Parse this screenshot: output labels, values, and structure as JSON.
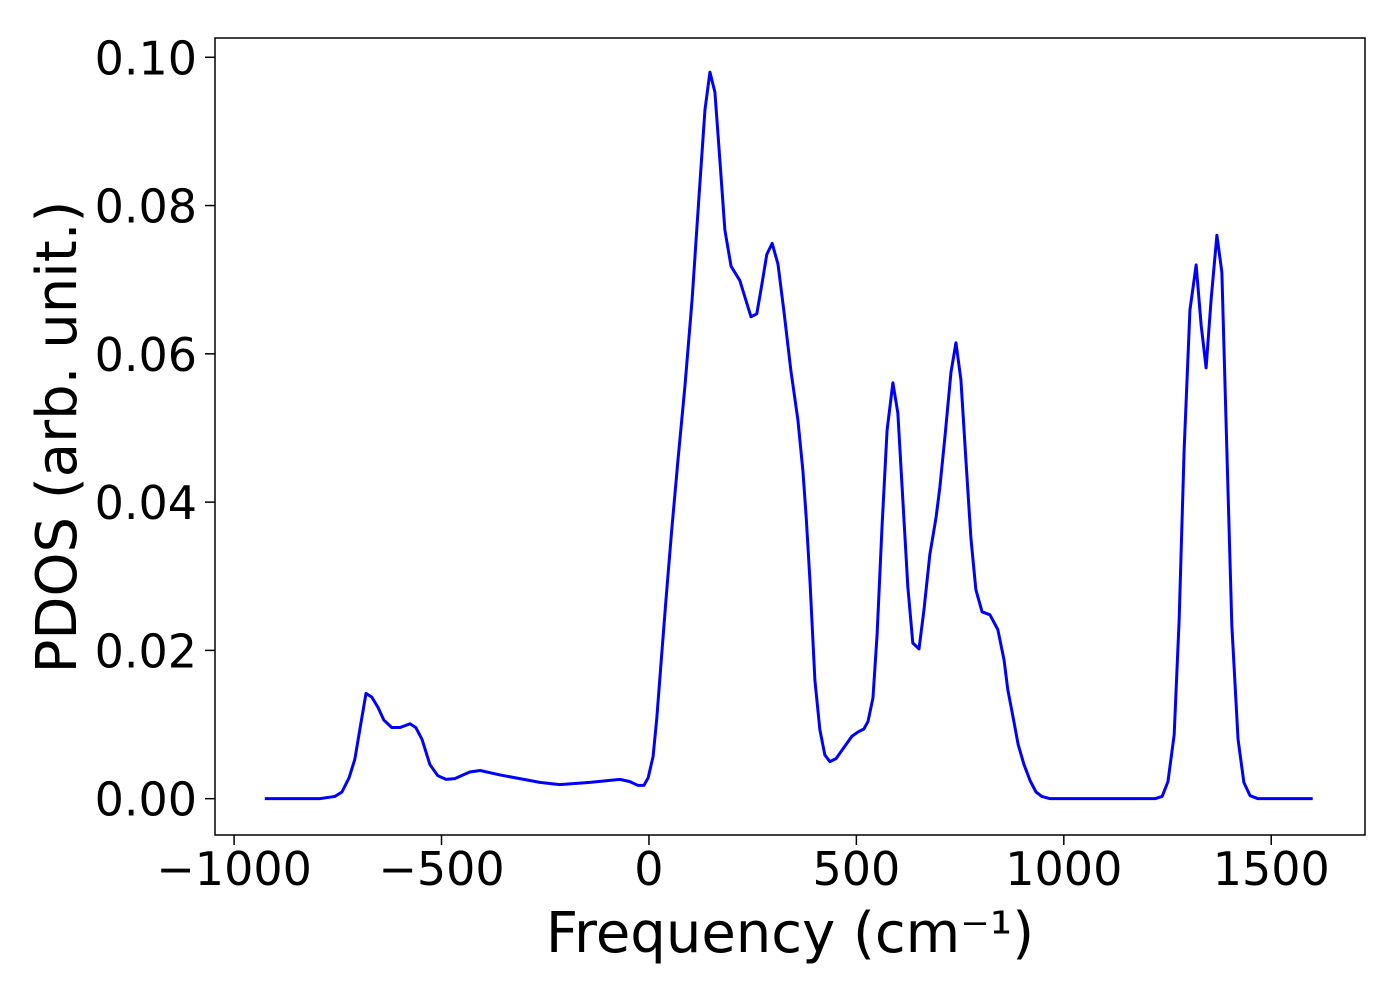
{
  "chart_data": {
    "type": "line",
    "xlabel": "Frequency (cm⁻¹)",
    "ylabel": "PDOS (arb. unit.)",
    "xlim": [
      -1046,
      1726
    ],
    "ylim": [
      -0.0049,
      0.1026
    ],
    "xticks": [
      {
        "value": -1000,
        "label": "−1000"
      },
      {
        "value": -500,
        "label": "−500"
      },
      0,
      500,
      1000,
      1500
    ],
    "yticks": [
      {
        "value": 0,
        "label": "0.00"
      },
      {
        "value": 0.02,
        "label": "0.02"
      },
      {
        "value": 0.04,
        "label": "0.04"
      },
      {
        "value": 0.06,
        "label": "0.06"
      },
      {
        "value": 0.08,
        "label": "0.08"
      },
      {
        "value": 0.1,
        "label": "0.10"
      }
    ],
    "series": [
      {
        "color": "#0000ff",
        "x": [
          -926,
          -793,
          -757,
          -740,
          -723,
          -709,
          -697,
          -682,
          -668,
          -653,
          -639,
          -620,
          -600,
          -576,
          -562,
          -547,
          -528,
          -509,
          -489,
          -468,
          -432,
          -407,
          -359,
          -263,
          -215,
          -142,
          -70,
          -46,
          -27,
          -12,
          -2,
          10,
          19,
          29,
          41,
          55,
          70,
          87,
          104,
          120,
          135,
          147,
          159,
          171,
          183,
          198,
          219,
          246,
          260,
          272,
          284,
          297,
          311,
          325,
          342,
          359,
          371,
          379,
          388,
          400,
          412,
          424,
          436,
          451,
          470,
          489,
          504,
          518,
          528,
          540,
          550,
          562,
          574,
          588,
          600,
          612,
          624,
          636,
          651,
          663,
          677,
          692,
          701,
          714,
          728,
          740,
          752,
          764,
          776,
          788,
          803,
          822,
          841,
          856,
          865,
          878,
          890,
          904,
          919,
          933,
          947,
          967,
          1220,
          1237,
          1251,
          1266,
          1278,
          1290,
          1304,
          1319,
          1331,
          1343,
          1355,
          1369,
          1381,
          1393,
          1405,
          1420,
          1434,
          1449,
          1468,
          1600
        ],
        "values": [
          0,
          0,
          0.0003,
          0.0009,
          0.0028,
          0.0053,
          0.0093,
          0.0142,
          0.0137,
          0.0123,
          0.0106,
          0.0096,
          0.0096,
          0.0101,
          0.0096,
          0.008,
          0.0046,
          0.0031,
          0.0026,
          0.0027,
          0.0036,
          0.0038,
          0.0032,
          0.0022,
          0.0019,
          0.0022,
          0.0026,
          0.0023,
          0.0018,
          0.0018,
          0.0028,
          0.0057,
          0.0109,
          0.0182,
          0.0268,
          0.0363,
          0.0457,
          0.0558,
          0.0673,
          0.0807,
          0.0929,
          0.098,
          0.0953,
          0.0861,
          0.0767,
          0.0718,
          0.0699,
          0.065,
          0.0654,
          0.0693,
          0.0734,
          0.0749,
          0.0721,
          0.0659,
          0.0578,
          0.0511,
          0.0443,
          0.038,
          0.0295,
          0.016,
          0.0093,
          0.0059,
          0.005,
          0.0054,
          0.0069,
          0.0084,
          0.009,
          0.0094,
          0.0104,
          0.0136,
          0.0222,
          0.0369,
          0.0497,
          0.0561,
          0.052,
          0.0403,
          0.0286,
          0.021,
          0.0202,
          0.0255,
          0.0329,
          0.0379,
          0.0419,
          0.0491,
          0.0575,
          0.0615,
          0.0565,
          0.0457,
          0.0352,
          0.0282,
          0.0252,
          0.0248,
          0.0228,
          0.0187,
          0.0147,
          0.0109,
          0.0073,
          0.0046,
          0.0024,
          0.0009,
          0.0003,
          0,
          0,
          0.0003,
          0.0023,
          0.0086,
          0.0241,
          0.047,
          0.0659,
          0.072,
          0.0639,
          0.0581,
          0.0673,
          0.076,
          0.071,
          0.047,
          0.0234,
          0.008,
          0.0022,
          0.0004,
          0,
          0
        ]
      }
    ]
  }
}
